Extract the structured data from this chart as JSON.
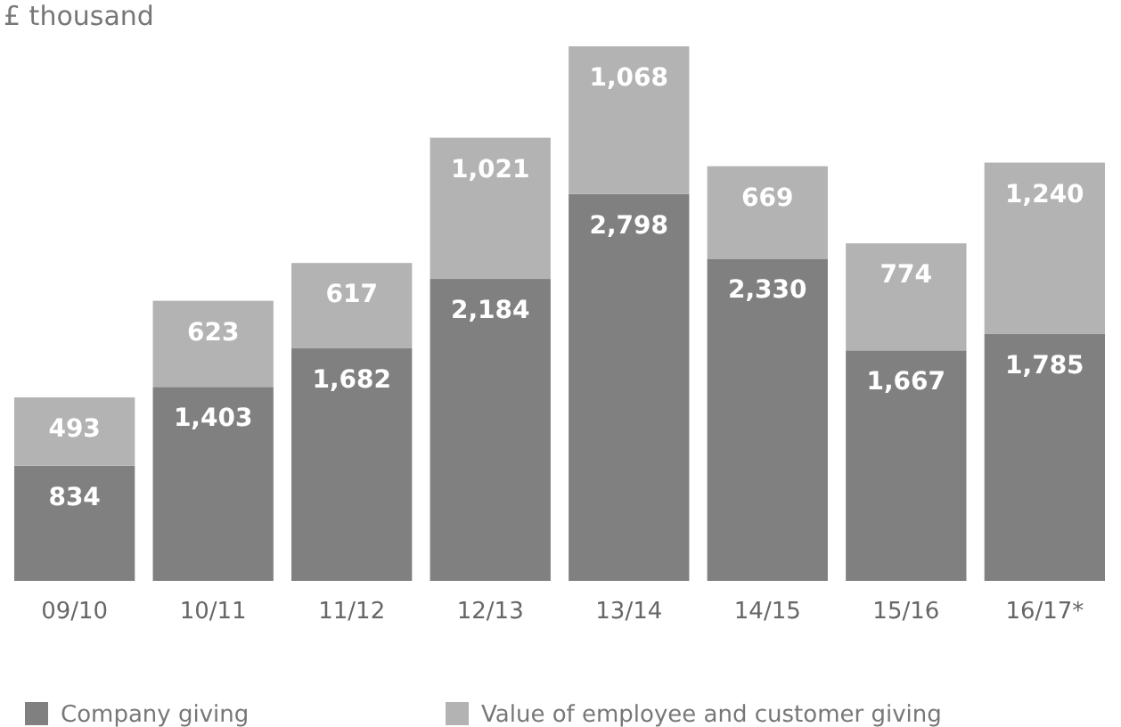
{
  "chart_data": {
    "type": "bar",
    "title": "£ thousand",
    "stacked": true,
    "legend": "bottom",
    "categories": [
      "09/10",
      "10/11",
      "11/12",
      "12/13",
      "13/14",
      "14/15",
      "15/16",
      "16/17*"
    ],
    "series": [
      {
        "name": "Company giving",
        "color": "#808080",
        "values": [
          834,
          1403,
          1682,
          2184,
          2798,
          2330,
          1667,
          1785
        ],
        "value_labels": [
          "834",
          "1,403",
          "1,682",
          "2,184",
          "2,798",
          "2,330",
          "1,667",
          "1,785"
        ]
      },
      {
        "name": "Value of employee and customer giving",
        "color": "#b3b3b3",
        "values": [
          493,
          623,
          617,
          1021,
          1068,
          669,
          774,
          1240
        ],
        "value_labels": [
          "493",
          "623",
          "617",
          "1,021",
          "1,068",
          "669",
          "774",
          "1,240"
        ]
      }
    ]
  }
}
